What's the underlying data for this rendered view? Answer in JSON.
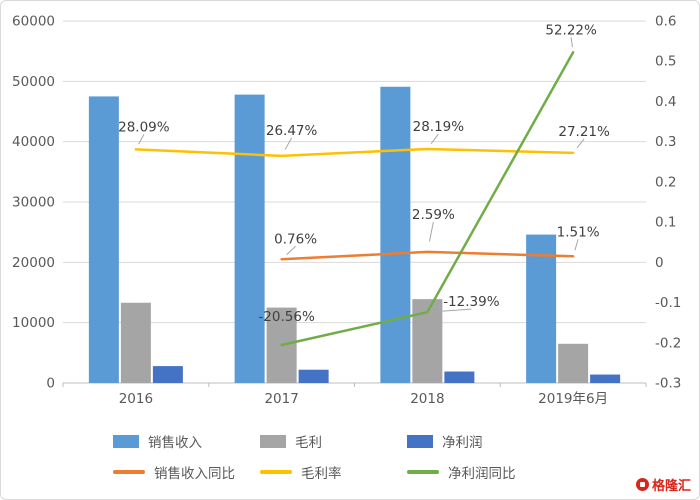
{
  "chart_data": {
    "type": "combo",
    "title": "",
    "categories": [
      "2016",
      "2017",
      "2018",
      "2019年6月"
    ],
    "bar_series": [
      {
        "name": "销售收入",
        "color": "#5B9BD5",
        "axis": "left",
        "values": [
          47500,
          47800,
          49100,
          24600
        ]
      },
      {
        "name": "毛利",
        "color": "#A5A5A5",
        "axis": "left",
        "values": [
          13300,
          12500,
          13900,
          6500
        ]
      },
      {
        "name": "净利润",
        "color": "#4472C4",
        "axis": "left",
        "values": [
          2800,
          2200,
          1900,
          1400
        ]
      }
    ],
    "line_series": [
      {
        "name": "销售收入同比",
        "color": "#ED7D31",
        "axis": "right",
        "values": [
          null,
          0.0076,
          0.0259,
          0.0151
        ],
        "labels": [
          null,
          "0.76%",
          "2.59%",
          "1.51%"
        ]
      },
      {
        "name": "毛利率",
        "color": "#FFC000",
        "axis": "right",
        "values": [
          0.2809,
          0.2647,
          0.2819,
          0.2721
        ],
        "labels": [
          "28.09%",
          "26.47%",
          "28.19%",
          "27.21%"
        ]
      },
      {
        "name": "净利润同比",
        "color": "#70AD47",
        "axis": "right",
        "values": [
          null,
          -0.2056,
          -0.1239,
          0.5222
        ],
        "labels": [
          null,
          "-20.56%",
          "-12.39%",
          "52.22%"
        ]
      }
    ],
    "left_axis": {
      "min": 0,
      "max": 60000,
      "step": 10000,
      "ticks": [
        "0",
        "10000",
        "20000",
        "30000",
        "40000",
        "50000",
        "60000"
      ]
    },
    "right_axis": {
      "min": -0.3,
      "max": 0.6,
      "step": 0.1,
      "ticks": [
        "-0.3",
        "-0.2",
        "-0.1",
        "0",
        "0.1",
        "0.2",
        "0.3",
        "0.4",
        "0.5",
        "0.6"
      ]
    },
    "grid": true,
    "legend_position": "bottom"
  },
  "watermark": {
    "text": "格隆汇",
    "color": "#D9261C"
  }
}
